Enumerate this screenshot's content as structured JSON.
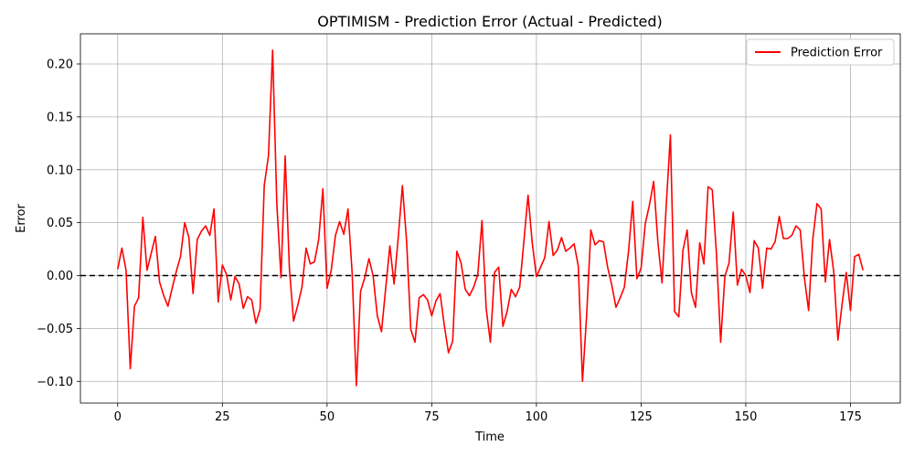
{
  "chart_data": {
    "type": "line",
    "title": "OPTIMISM - Prediction Error (Actual - Predicted)",
    "xlabel": "Time",
    "ylabel": "Error",
    "xlim": [
      -8.9,
      186.9
    ],
    "ylim": [
      -0.1205,
      0.2285
    ],
    "x_ticks": [
      0,
      25,
      50,
      75,
      100,
      125,
      150,
      175
    ],
    "x_tick_labels": [
      "0",
      "25",
      "50",
      "75",
      "100",
      "125",
      "150",
      "175"
    ],
    "y_ticks": [
      -0.1,
      -0.05,
      0.0,
      0.05,
      0.1,
      0.15,
      0.2
    ],
    "y_tick_labels": [
      "−0.10",
      "−0.05",
      "0.00",
      "0.05",
      "0.10",
      "0.15",
      "0.20"
    ],
    "grid": true,
    "legend": {
      "position": "top-right",
      "entries": [
        "Prediction Error"
      ]
    },
    "reference_line": {
      "y": 0,
      "style": "dashed",
      "color": "#000000"
    },
    "series": [
      {
        "name": "Prediction Error",
        "color": "#ff0000",
        "x_start": 0,
        "x_step": 1,
        "values": [
          0.006,
          0.026,
          0.005,
          -0.088,
          -0.029,
          -0.021,
          0.055,
          0.005,
          0.021,
          0.037,
          -0.006,
          -0.019,
          -0.029,
          -0.012,
          0.004,
          0.018,
          0.05,
          0.036,
          -0.017,
          0.034,
          0.042,
          0.047,
          0.038,
          0.063,
          -0.025,
          0.01,
          0.001,
          -0.023,
          -0.001,
          -0.008,
          -0.031,
          -0.02,
          -0.023,
          -0.045,
          -0.032,
          0.085,
          0.113,
          0.213,
          0.068,
          -0.002,
          0.113,
          0.007,
          -0.043,
          -0.028,
          -0.011,
          0.026,
          0.011,
          0.013,
          0.034,
          0.082,
          -0.012,
          0.005,
          0.038,
          0.051,
          0.039,
          0.063,
          0.002,
          -0.104,
          -0.015,
          -0.002,
          0.016,
          0.0,
          -0.038,
          -0.053,
          -0.012,
          0.028,
          -0.008,
          0.036,
          0.085,
          0.032,
          -0.051,
          -0.063,
          -0.021,
          -0.018,
          -0.023,
          -0.038,
          -0.024,
          -0.017,
          -0.047,
          -0.073,
          -0.062,
          0.023,
          0.012,
          -0.013,
          -0.019,
          -0.011,
          0.001,
          0.052,
          -0.031,
          -0.063,
          0.003,
          0.008,
          -0.048,
          -0.034,
          -0.013,
          -0.02,
          -0.011,
          0.032,
          0.076,
          0.031,
          -0.001,
          0.008,
          0.017,
          0.051,
          0.019,
          0.024,
          0.036,
          0.023,
          0.026,
          0.03,
          0.009,
          -0.1,
          -0.037,
          0.043,
          0.029,
          0.033,
          0.032,
          0.008,
          -0.009,
          -0.03,
          -0.021,
          -0.011,
          0.023,
          0.07,
          -0.003,
          0.007,
          0.049,
          0.067,
          0.089,
          0.032,
          -0.007,
          0.066,
          0.133,
          -0.034,
          -0.039,
          0.024,
          0.043,
          -0.016,
          -0.03,
          0.031,
          0.011,
          0.084,
          0.081,
          0.02,
          -0.063,
          -0.001,
          0.012,
          0.06,
          -0.009,
          0.006,
          0.0,
          -0.016,
          0.033,
          0.026,
          -0.012,
          0.026,
          0.025,
          0.032,
          0.056,
          0.035,
          0.035,
          0.038,
          0.047,
          0.043,
          -0.002,
          -0.033,
          0.034,
          0.068,
          0.063,
          -0.006,
          0.034,
          0.004,
          -0.061,
          -0.027,
          0.003,
          -0.033,
          0.018,
          0.02,
          0.005
        ]
      }
    ]
  }
}
